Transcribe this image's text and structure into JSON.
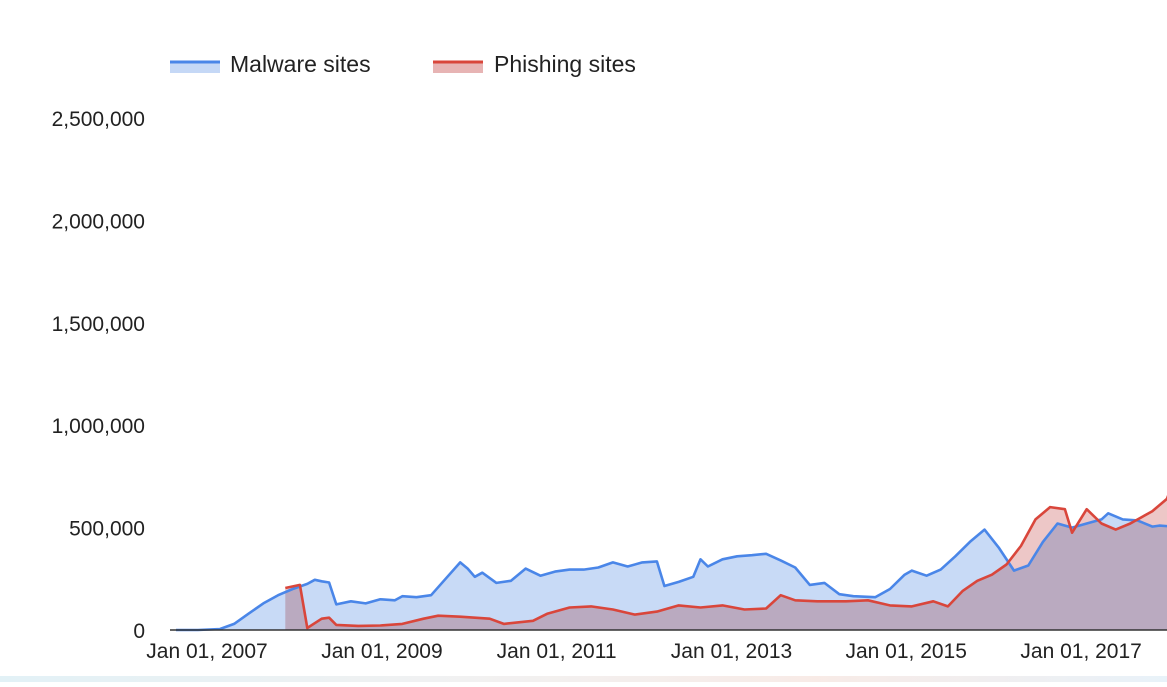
{
  "chart_data": {
    "type": "area",
    "title": "",
    "xlabel": "",
    "ylabel": "",
    "x_ticks": [
      "Jan 01, 2007",
      "Jan 01, 2009",
      "Jan 01, 2011",
      "Jan 01, 2013",
      "Jan 01, 2015",
      "Jan 01, 2017"
    ],
    "y_ticks": [
      "0",
      "500,000",
      "1,000,000",
      "1,500,000",
      "2,000,000",
      "2,500,000"
    ],
    "ylim": [
      0,
      2500000
    ],
    "xlim": [
      "2006-07-01",
      "2017-12-01"
    ],
    "grid": false,
    "legend_position": "top-left",
    "series": [
      {
        "name": "Malware sites",
        "color": "#4a86e8",
        "fill": "#c5d8f6",
        "points": [
          [
            "2006-07-01",
            0
          ],
          [
            "2006-10-01",
            0
          ],
          [
            "2007-01-01",
            5000
          ],
          [
            "2007-03-01",
            30000
          ],
          [
            "2007-05-01",
            80000
          ],
          [
            "2007-07-01",
            130000
          ],
          [
            "2007-09-01",
            170000
          ],
          [
            "2007-11-01",
            200000
          ],
          [
            "2008-01-01",
            225000
          ],
          [
            "2008-02-01",
            245000
          ],
          [
            "2008-03-01",
            238000
          ],
          [
            "2008-04-01",
            232000
          ],
          [
            "2008-05-01",
            125000
          ],
          [
            "2008-07-01",
            140000
          ],
          [
            "2008-09-01",
            130000
          ],
          [
            "2008-11-01",
            150000
          ],
          [
            "2009-01-01",
            145000
          ],
          [
            "2009-02-01",
            165000
          ],
          [
            "2009-04-01",
            160000
          ],
          [
            "2009-06-01",
            170000
          ],
          [
            "2009-08-01",
            250000
          ],
          [
            "2009-10-01",
            330000
          ],
          [
            "2009-11-01",
            300000
          ],
          [
            "2009-12-01",
            260000
          ],
          [
            "2010-01-01",
            280000
          ],
          [
            "2010-03-01",
            230000
          ],
          [
            "2010-05-01",
            240000
          ],
          [
            "2010-07-01",
            300000
          ],
          [
            "2010-09-01",
            265000
          ],
          [
            "2010-11-01",
            285000
          ],
          [
            "2011-01-01",
            295000
          ],
          [
            "2011-03-01",
            295000
          ],
          [
            "2011-05-01",
            305000
          ],
          [
            "2011-07-01",
            330000
          ],
          [
            "2011-09-01",
            310000
          ],
          [
            "2011-11-01",
            330000
          ],
          [
            "2012-01-01",
            335000
          ],
          [
            "2012-02-01",
            215000
          ],
          [
            "2012-04-01",
            235000
          ],
          [
            "2012-06-01",
            260000
          ],
          [
            "2012-07-01",
            345000
          ],
          [
            "2012-08-01",
            310000
          ],
          [
            "2012-10-01",
            345000
          ],
          [
            "2012-12-01",
            360000
          ],
          [
            "2013-02-01",
            365000
          ],
          [
            "2013-04-01",
            372000
          ],
          [
            "2013-06-01",
            340000
          ],
          [
            "2013-08-01",
            305000
          ],
          [
            "2013-10-01",
            220000
          ],
          [
            "2013-12-01",
            230000
          ],
          [
            "2014-02-01",
            175000
          ],
          [
            "2014-04-01",
            165000
          ],
          [
            "2014-07-01",
            160000
          ],
          [
            "2014-09-01",
            200000
          ],
          [
            "2014-11-01",
            270000
          ],
          [
            "2014-12-01",
            290000
          ],
          [
            "2015-02-01",
            265000
          ],
          [
            "2015-04-01",
            295000
          ],
          [
            "2015-06-01",
            360000
          ],
          [
            "2015-08-01",
            430000
          ],
          [
            "2015-10-01",
            490000
          ],
          [
            "2015-12-01",
            400000
          ],
          [
            "2016-02-01",
            290000
          ],
          [
            "2016-04-01",
            315000
          ],
          [
            "2016-06-01",
            430000
          ],
          [
            "2016-08-01",
            520000
          ],
          [
            "2016-10-01",
            500000
          ],
          [
            "2016-12-01",
            520000
          ],
          [
            "2017-02-01",
            540000
          ],
          [
            "2017-03-01",
            570000
          ],
          [
            "2017-05-01",
            540000
          ],
          [
            "2017-07-01",
            535000
          ],
          [
            "2017-09-01",
            505000
          ],
          [
            "2017-10-01",
            510000
          ],
          [
            "2017-12-01",
            505000
          ]
        ]
      },
      {
        "name": "Phishing sites",
        "color": "#d9463b",
        "fill": "#e7b4b4",
        "points": [
          [
            "2007-10-01",
            205000
          ],
          [
            "2007-12-01",
            220000
          ],
          [
            "2008-01-01",
            10000
          ],
          [
            "2008-03-01",
            55000
          ],
          [
            "2008-04-01",
            60000
          ],
          [
            "2008-05-01",
            25000
          ],
          [
            "2008-08-01",
            20000
          ],
          [
            "2008-11-01",
            22000
          ],
          [
            "2009-02-01",
            30000
          ],
          [
            "2009-05-01",
            55000
          ],
          [
            "2009-07-01",
            70000
          ],
          [
            "2009-10-01",
            65000
          ],
          [
            "2010-02-01",
            55000
          ],
          [
            "2010-04-01",
            30000
          ],
          [
            "2010-08-01",
            45000
          ],
          [
            "2010-10-01",
            80000
          ],
          [
            "2011-01-01",
            110000
          ],
          [
            "2011-04-01",
            115000
          ],
          [
            "2011-07-01",
            100000
          ],
          [
            "2011-10-01",
            75000
          ],
          [
            "2012-01-01",
            90000
          ],
          [
            "2012-04-01",
            120000
          ],
          [
            "2012-07-01",
            110000
          ],
          [
            "2012-10-01",
            120000
          ],
          [
            "2013-01-01",
            100000
          ],
          [
            "2013-04-01",
            105000
          ],
          [
            "2013-06-01",
            170000
          ],
          [
            "2013-08-01",
            145000
          ],
          [
            "2013-11-01",
            140000
          ],
          [
            "2014-03-01",
            140000
          ],
          [
            "2014-06-01",
            145000
          ],
          [
            "2014-09-01",
            120000
          ],
          [
            "2014-12-01",
            115000
          ],
          [
            "2015-03-01",
            140000
          ],
          [
            "2015-05-01",
            115000
          ],
          [
            "2015-07-01",
            190000
          ],
          [
            "2015-09-01",
            240000
          ],
          [
            "2015-11-01",
            270000
          ],
          [
            "2016-01-01",
            320000
          ],
          [
            "2016-03-01",
            410000
          ],
          [
            "2016-05-01",
            540000
          ],
          [
            "2016-07-01",
            600000
          ],
          [
            "2016-09-01",
            590000
          ],
          [
            "2016-10-01",
            475000
          ],
          [
            "2016-12-01",
            590000
          ],
          [
            "2017-02-01",
            520000
          ],
          [
            "2017-04-01",
            490000
          ],
          [
            "2017-06-01",
            520000
          ],
          [
            "2017-09-01",
            580000
          ],
          [
            "2017-11-01",
            640000
          ],
          [
            "2017-12-01",
            730000
          ]
        ]
      }
    ]
  }
}
